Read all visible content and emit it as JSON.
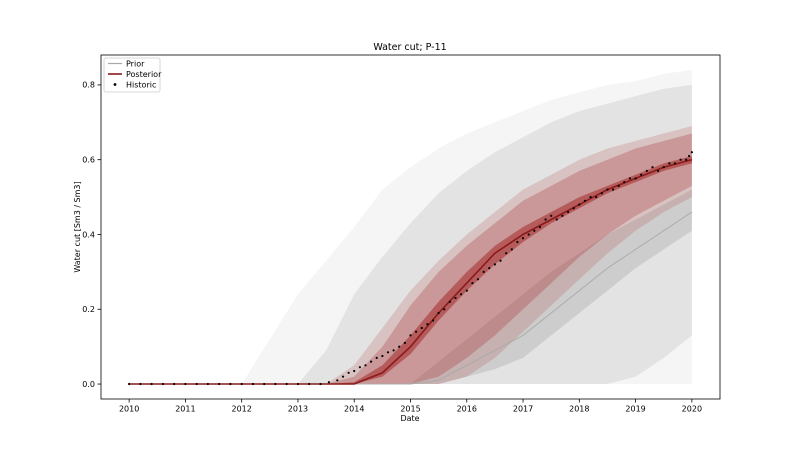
{
  "chart_data": {
    "type": "line",
    "title": "Water cut; P-11",
    "xlabel": "Date",
    "ylabel": "Water cut [Sm3 / Sm3]",
    "xlim": [
      2009.5,
      2020.5
    ],
    "ylim": [
      -0.04,
      0.88
    ],
    "x_ticks": [
      2010,
      2011,
      2012,
      2013,
      2014,
      2015,
      2016,
      2017,
      2018,
      2019,
      2020
    ],
    "x_tick_labels": [
      "2010",
      "2011",
      "2012",
      "2013",
      "2014",
      "2015",
      "2016",
      "2017",
      "2018",
      "2019",
      "2020"
    ],
    "y_ticks": [
      0.0,
      0.2,
      0.4,
      0.6,
      0.8
    ],
    "y_tick_labels": [
      "0.0",
      "0.2",
      "0.4",
      "0.6",
      "0.8"
    ],
    "grid": false,
    "legend": {
      "placement": "top-left",
      "entries": [
        {
          "label": "Prior",
          "style": "line",
          "color": "#a9a9a9"
        },
        {
          "label": "Posterior",
          "style": "line",
          "color": "#8b1a1a"
        },
        {
          "label": "Historic",
          "style": "marker",
          "color": "#000000"
        }
      ]
    },
    "colors": {
      "prior_band": "#7f7f7f",
      "prior_line": "#a9a9a9",
      "posterior_band": "#a52a2a",
      "posterior_line": "#8b1a1a",
      "historic": "#000000"
    },
    "prior": {
      "x": [
        2010,
        2012.0,
        2012.5,
        2013,
        2013.5,
        2014,
        2014.5,
        2015,
        2015.5,
        2016,
        2016.5,
        2017,
        2017.5,
        2018,
        2018.5,
        2019,
        2019.5,
        2020
      ],
      "outer_upper": [
        0.0,
        0.0,
        0.12,
        0.24,
        0.33,
        0.42,
        0.52,
        0.58,
        0.63,
        0.67,
        0.7,
        0.73,
        0.76,
        0.78,
        0.8,
        0.81,
        0.83,
        0.84
      ],
      "outer_lower": [
        0.0,
        0.0,
        0.0,
        0.0,
        0.0,
        0.0,
        0.0,
        0.0,
        0.0,
        0.0,
        0.0,
        0.0,
        0.0,
        0.0,
        0.0,
        0.0,
        0.0,
        0.0
      ],
      "inner_upper": [
        0.0,
        0.0,
        0.0,
        0.0,
        0.09,
        0.24,
        0.34,
        0.43,
        0.51,
        0.57,
        0.62,
        0.66,
        0.7,
        0.73,
        0.75,
        0.77,
        0.79,
        0.8
      ],
      "inner_lower": [
        0.0,
        0.0,
        0.0,
        0.0,
        0.0,
        0.0,
        0.0,
        0.0,
        0.0,
        0.0,
        0.0,
        0.0,
        0.0,
        0.0,
        0.0,
        0.02,
        0.07,
        0.13
      ],
      "core_upper": [
        0.0,
        0.0,
        0.0,
        0.0,
        0.0,
        0.0,
        0.0,
        0.0,
        0.06,
        0.12,
        0.18,
        0.24,
        0.3,
        0.35,
        0.4,
        0.44,
        0.48,
        0.52
      ],
      "core_lower": [
        0.0,
        0.0,
        0.0,
        0.0,
        0.0,
        0.0,
        0.0,
        0.0,
        0.0,
        0.02,
        0.04,
        0.07,
        0.13,
        0.19,
        0.25,
        0.31,
        0.36,
        0.41
      ],
      "median": [
        0.0,
        0.0,
        0.0,
        0.0,
        0.0,
        0.0,
        0.0,
        0.0,
        0.01,
        0.05,
        0.09,
        0.13,
        0.19,
        0.25,
        0.31,
        0.36,
        0.41,
        0.46
      ]
    },
    "posterior": {
      "x": [
        2010,
        2013.5,
        2014.0,
        2014.5,
        2015,
        2015.5,
        2016,
        2016.5,
        2017,
        2017.5,
        2018,
        2018.5,
        2019,
        2019.5,
        2020
      ],
      "outer_upper": [
        0.0,
        0.0,
        0.05,
        0.15,
        0.25,
        0.33,
        0.4,
        0.46,
        0.52,
        0.56,
        0.6,
        0.63,
        0.65,
        0.67,
        0.69
      ],
      "outer_lower": [
        0.0,
        0.0,
        0.0,
        0.0,
        0.0,
        0.0,
        0.02,
        0.07,
        0.14,
        0.21,
        0.28,
        0.35,
        0.41,
        0.46,
        0.5
      ],
      "inner_upper": [
        0.0,
        0.0,
        0.02,
        0.1,
        0.21,
        0.3,
        0.37,
        0.43,
        0.49,
        0.53,
        0.57,
        0.6,
        0.63,
        0.65,
        0.67
      ],
      "inner_lower": [
        0.0,
        0.0,
        0.0,
        0.0,
        0.0,
        0.02,
        0.07,
        0.13,
        0.2,
        0.27,
        0.34,
        0.4,
        0.45,
        0.49,
        0.53
      ],
      "core_upper": [
        0.0,
        0.0,
        0.005,
        0.05,
        0.13,
        0.22,
        0.3,
        0.37,
        0.42,
        0.46,
        0.5,
        0.53,
        0.56,
        0.59,
        0.61
      ],
      "core_lower": [
        0.0,
        0.0,
        0.0,
        0.02,
        0.08,
        0.17,
        0.25,
        0.32,
        0.38,
        0.43,
        0.47,
        0.51,
        0.54,
        0.57,
        0.59
      ],
      "median": [
        0.0,
        0.0,
        0.0,
        0.03,
        0.1,
        0.19,
        0.27,
        0.35,
        0.4,
        0.44,
        0.48,
        0.52,
        0.55,
        0.58,
        0.6
      ]
    },
    "historic": {
      "x": [
        2010.0,
        2010.2,
        2010.4,
        2010.6,
        2010.8,
        2011.0,
        2011.2,
        2011.4,
        2011.6,
        2011.8,
        2012.0,
        2012.2,
        2012.4,
        2012.6,
        2012.8,
        2013.0,
        2013.2,
        2013.4,
        2013.55,
        2013.7,
        2013.8,
        2013.9,
        2014.0,
        2014.1,
        2014.2,
        2014.3,
        2014.4,
        2014.5,
        2014.6,
        2014.7,
        2014.8,
        2014.9,
        2015.0,
        2015.1,
        2015.2,
        2015.3,
        2015.4,
        2015.5,
        2015.6,
        2015.7,
        2015.8,
        2015.9,
        2016.0,
        2016.1,
        2016.2,
        2016.3,
        2016.4,
        2016.5,
        2016.6,
        2016.7,
        2016.8,
        2016.9,
        2017.0,
        2017.1,
        2017.2,
        2017.3,
        2017.4,
        2017.5,
        2017.6,
        2017.7,
        2017.8,
        2017.9,
        2018.0,
        2018.1,
        2018.2,
        2018.3,
        2018.4,
        2018.5,
        2018.6,
        2018.7,
        2018.8,
        2018.9,
        2019.0,
        2019.1,
        2019.2,
        2019.3,
        2019.4,
        2019.5,
        2019.6,
        2019.7,
        2019.8,
        2019.9,
        2019.95,
        2020.0
      ],
      "y": [
        0.0,
        0.0,
        0.0,
        0.0,
        0.0,
        0.0,
        0.0,
        0.0,
        0.0,
        0.0,
        0.0,
        0.0,
        0.0,
        0.0,
        0.0,
        0.0,
        0.0,
        0.0,
        0.005,
        0.01,
        0.02,
        0.03,
        0.035,
        0.045,
        0.05,
        0.06,
        0.07,
        0.075,
        0.085,
        0.09,
        0.1,
        0.11,
        0.13,
        0.14,
        0.15,
        0.16,
        0.17,
        0.19,
        0.2,
        0.22,
        0.23,
        0.24,
        0.25,
        0.27,
        0.28,
        0.3,
        0.31,
        0.32,
        0.33,
        0.35,
        0.36,
        0.38,
        0.39,
        0.4,
        0.41,
        0.42,
        0.44,
        0.45,
        0.44,
        0.45,
        0.46,
        0.47,
        0.48,
        0.49,
        0.5,
        0.5,
        0.51,
        0.52,
        0.52,
        0.53,
        0.54,
        0.55,
        0.55,
        0.56,
        0.57,
        0.58,
        0.57,
        0.58,
        0.59,
        0.59,
        0.6,
        0.6,
        0.61,
        0.62
      ]
    }
  }
}
